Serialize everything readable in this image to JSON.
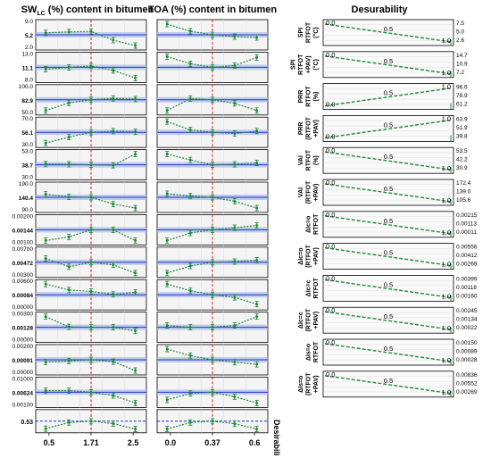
{
  "chart_data": [
    {
      "type": "line",
      "title": "SW_LC (%) content in bitumen",
      "xticks": [
        "0.5",
        "1.71",
        "2.5"
      ],
      "x_current": "1.71",
      "rows": [
        {
          "ticks": [
            "9.0",
            "5.2",
            "2.0"
          ],
          "center": "5.2",
          "values": [
            5.6,
            5.8,
            5.9,
            4.1,
            3.0
          ]
        },
        {
          "ticks": [
            "13.0",
            "11.1",
            "8.0"
          ],
          "center": "11.1",
          "values": [
            10.8,
            11.1,
            11.3,
            10.6,
            9.4
          ]
        },
        {
          "ticks": [
            "100.0",
            "82.9",
            "50.0"
          ],
          "center": "82.9",
          "values": [
            66,
            78,
            82.9,
            85,
            84
          ]
        },
        {
          "ticks": [
            "70.0",
            "56.1",
            "30.0"
          ],
          "center": "56.1",
          "values": [
            38,
            48,
            56.1,
            58,
            57
          ]
        },
        {
          "ticks": [
            "53.0",
            "38.7",
            "30.0"
          ],
          "center": "38.7",
          "values": [
            39,
            38.9,
            38.7,
            38.5,
            43
          ]
        },
        {
          "ticks": [
            "190.0",
            "140.4",
            "90.0"
          ],
          "center": "140.4",
          "values": [
            145,
            141,
            140.4,
            130,
            124
          ]
        },
        {
          "ticks": [
            "0.00200",
            "0.00144",
            "0.00100"
          ],
          "center": "0.00144",
          "values": [
            0.00141,
            0.00142,
            0.00144,
            0.00144,
            0.00141
          ]
        },
        {
          "ticks": [
            "0.00700",
            "0.00472",
            "0.00300"
          ],
          "center": "0.00472",
          "values": [
            0.00478,
            0.00465,
            0.00472,
            0.00468,
            0.00455
          ]
        },
        {
          "ticks": [
            "0.00600",
            "0.00084",
            "0.00000"
          ],
          "center": "0.00084",
          "values": [
            0.0052,
            0.0028,
            0.0022,
            0.001,
            0.0018
          ]
        },
        {
          "ticks": [
            "0.00300",
            "0.00128",
            "0.00000"
          ],
          "center": "0.00128",
          "values": [
            0.0018,
            0.0013,
            0.00128,
            0.00128,
            0.0011
          ]
        },
        {
          "ticks": [
            "0.00200",
            "0.00091",
            "0.00000"
          ],
          "center": "0.00091",
          "values": [
            0.0008,
            0.00085,
            0.00091,
            0.00082,
            0.0004
          ]
        },
        {
          "ticks": [
            "0.01000",
            "0.00624",
            "0.00100"
          ],
          "center": "0.00624",
          "values": [
            0.0066,
            0.0066,
            0.00624,
            0.0055,
            0.0038
          ]
        },
        {
          "ticks": [
            "0.53"
          ],
          "center": "0.53",
          "values": [
            0.12,
            0.46,
            0.53,
            0.4,
            0.1
          ]
        }
      ]
    },
    {
      "type": "line",
      "title": "TOA (%) content in bitumen",
      "xticks": [
        "0.0",
        "0.37",
        "0.6"
      ],
      "x_current": "0.37",
      "rows": [
        {
          "ticks": [],
          "center": "5.2",
          "values": [
            6.4,
            5.6,
            5.2,
            5.0,
            4.9
          ]
        },
        {
          "ticks": [],
          "center": "11.1",
          "values": [
            12.3,
            11.5,
            11.1,
            11.3,
            12.2
          ]
        },
        {
          "ticks": [],
          "center": "82.9",
          "values": [
            82,
            83,
            82.9,
            82.6,
            82
          ]
        },
        {
          "ticks": [],
          "center": "56.1",
          "values": [
            57,
            56.3,
            56.1,
            56,
            56.2
          ]
        },
        {
          "ticks": [],
          "center": "38.7",
          "values": [
            46,
            42,
            38.7,
            39,
            40
          ]
        },
        {
          "ticks": [],
          "center": "140.4",
          "values": [
            148,
            143,
            140.4,
            132,
            118
          ]
        },
        {
          "ticks": [],
          "center": "0.00144",
          "values": [
            0.00124,
            0.00138,
            0.00144,
            0.00148,
            0.00152
          ]
        },
        {
          "ticks": [],
          "center": "0.00472",
          "values": [
            0.0038,
            0.0044,
            0.00472,
            0.00478,
            0.0049
          ]
        },
        {
          "ticks": [],
          "center": "0.00084",
          "values": [
            0.001,
            0.0009,
            0.00084,
            0.0008,
            0.0007
          ]
        },
        {
          "ticks": [],
          "center": "0.00128",
          "values": [
            0.0013,
            0.00128,
            0.00128,
            0.0013,
            0.0014
          ]
        },
        {
          "ticks": [],
          "center": "0.00091",
          "values": [
            0.0014,
            0.0011,
            0.00091,
            0.0008,
            0.0007
          ]
        },
        {
          "ticks": [],
          "center": "0.00624",
          "values": [
            0.006,
            0.0062,
            0.00624,
            0.0061,
            0.0059
          ]
        },
        {
          "ticks": [],
          "center": "0.53",
          "values": [
            0.12,
            0.46,
            0.53,
            0.4,
            0.12
          ]
        }
      ],
      "right_label": "Desirabili"
    },
    {
      "type": "line",
      "title": "Desurability",
      "rows": [
        {
          "label": [
            "SPI",
            "RTFOT",
            "(°C)"
          ],
          "values": [
            "7.5",
            "5.0",
            "2.6"
          ],
          "start": 0.0,
          "end": 1.0,
          "direction": "down"
        },
        {
          "label": [
            "SPI",
            "RTFOT",
            "+PAV)",
            "(°C)"
          ],
          "values": [
            "14.7",
            "10.9",
            "7.2"
          ],
          "start": 0.0,
          "end": 1.0,
          "direction": "down"
        },
        {
          "label": [
            "PRR",
            "RTFOT",
            "(%)"
          ],
          "values": [
            "96.6",
            "78.9",
            "61.2"
          ],
          "start": 0.0,
          "end": 1.0,
          "direction": "up"
        },
        {
          "label": [
            "PRR",
            "(RTFOT",
            "+PAV)"
          ],
          "values": [
            "63.9",
            "51.9",
            "39.8"
          ],
          "start": 0.0,
          "end": 1.0,
          "direction": "up"
        },
        {
          "label": [
            "VAI",
            "RTFOT",
            "(%)"
          ],
          "values": [
            "53.5",
            "42.2",
            "30.9"
          ],
          "start": 0.0,
          "end": 1.0,
          "direction": "down"
        },
        {
          "label": [
            "VAI",
            "(RTFOT",
            "+PAV)"
          ],
          "values": [
            "172.4",
            "139.0",
            "105.6"
          ],
          "start": 0.0,
          "end": 1.0,
          "direction": "down"
        },
        {
          "label": [
            "ΔIc=o",
            "RTFOT"
          ],
          "values": [
            "0.00215",
            "0.00113",
            "0.00011"
          ],
          "start": 0.0,
          "end": 1.0,
          "direction": "down"
        },
        {
          "label": [
            "ΔIc=o",
            "(RTFOT",
            "+PAV)"
          ],
          "values": [
            "0.00556",
            "0.00412",
            "0.00269"
          ],
          "start": 0.0,
          "end": 1.0,
          "direction": "down"
        },
        {
          "label": [
            "ΔIc=c",
            "RTFOT"
          ],
          "values": [
            "0.00399",
            "0.00118",
            "0.00160"
          ],
          "start": 0.0,
          "end": 1.0,
          "direction": "down"
        },
        {
          "label": [
            "ΔIc=c",
            "(RTFOT",
            "+PAV)"
          ],
          "values": [
            "0.00245",
            "0.00134",
            "0.00022"
          ],
          "start": 0.0,
          "end": 1.0,
          "direction": "down"
        },
        {
          "label": [
            "ΔIs=o",
            "RTFOT"
          ],
          "values": [
            "0.00150",
            "0.00089",
            "0.00028"
          ],
          "start": 0.0,
          "end": 1.0,
          "direction": "down"
        },
        {
          "label": [
            "ΔIs=o",
            "(RTFOT",
            "+PAV)"
          ],
          "values": [
            "0.00836",
            "0.00552",
            "0.00269"
          ],
          "start": 0.0,
          "end": 1.0,
          "direction": "down"
        }
      ],
      "axis_labels": {
        "start": "0.0",
        "mid": "0.5",
        "end": "1.0"
      }
    }
  ],
  "colors": {
    "dashed": "#1f8a3a",
    "refline": "#2233cc",
    "band": "#aebfe8",
    "vline": "#d62020",
    "panel_bg": "#f4f4f4"
  }
}
